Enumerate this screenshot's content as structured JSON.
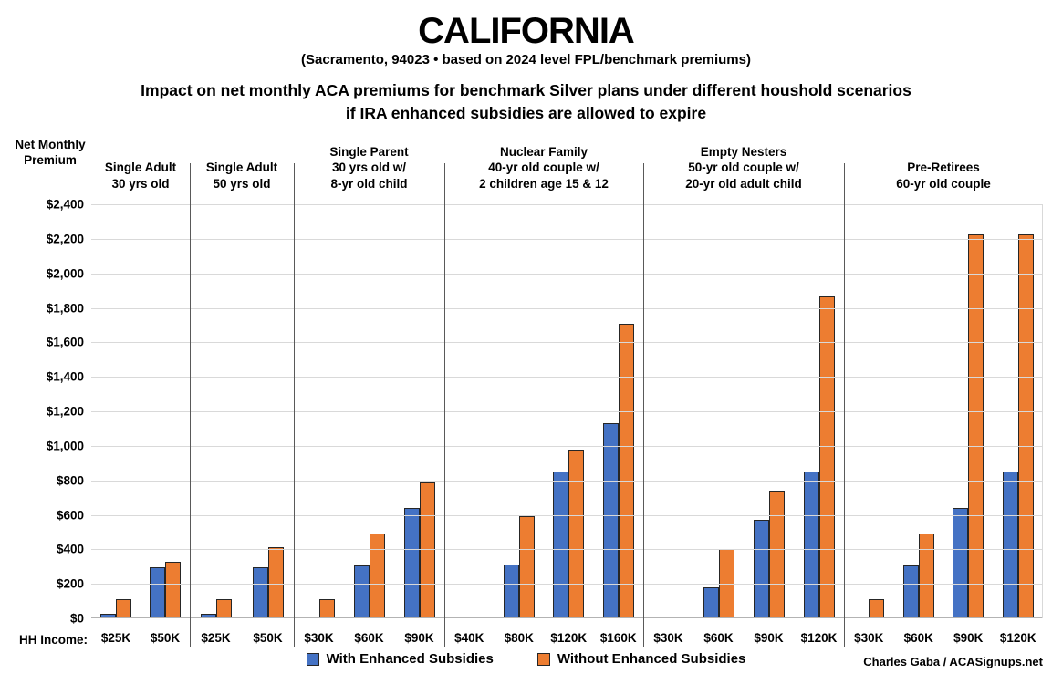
{
  "header": {
    "title": "CALIFORNIA",
    "subtitle": "(Sacramento, 94023 • based on 2024 level FPL/benchmark premiums)",
    "description_line1": "Impact on net monthly ACA premiums for benchmark Silver plans under different houshold scenarios",
    "description_line2": "if IRA enhanced subsidies are allowed to expire"
  },
  "credit": "Charles Gaba / ACASignups.net",
  "chart_data": {
    "type": "bar",
    "y_axis_title": "Net Monthly Premium",
    "ylim": [
      0,
      2400
    ],
    "ytick_step": 200,
    "yticks_top_to_bottom": [
      "$2,400",
      "$2,200",
      "$2,000",
      "$1,800",
      "$1,600",
      "$1,400",
      "$1,200",
      "$1,000",
      "$800",
      "$600",
      "$400",
      "$200",
      "$0"
    ],
    "x_axis_prefix": "HH Income:",
    "grid": true,
    "legend_position": "bottom-center",
    "colors": {
      "with": "#4472C4",
      "without": "#ED7D31",
      "grid": "#d9d9d9",
      "divider": "#595959",
      "bar_border": "#262626"
    },
    "series": [
      {
        "key": "with",
        "name": "With Enhanced Subsidies",
        "color": "#4472C4"
      },
      {
        "key": "without",
        "name": "Without Enhanced Subsidies",
        "color": "#ED7D31"
      }
    ],
    "panels": [
      {
        "header": [
          "Single Adult",
          "30 yrs old"
        ],
        "categories": [
          "$25K",
          "$50K"
        ],
        "with": [
          20,
          290
        ],
        "without": [
          105,
          325
        ]
      },
      {
        "header": [
          "Single Adult",
          "50 yrs old"
        ],
        "categories": [
          "$25K",
          "$50K"
        ],
        "with": [
          20,
          290
        ],
        "without": [
          105,
          410
        ]
      },
      {
        "header": [
          "Single Parent",
          "30 yrs old w/",
          "8-yr old child"
        ],
        "categories": [
          "$30K",
          "$60K",
          "$90K"
        ],
        "with": [
          5,
          300,
          635
        ],
        "without": [
          105,
          490,
          785
        ]
      },
      {
        "header": [
          "Nuclear Family",
          "40-yr old couple w/",
          "2 children age 15 & 12"
        ],
        "categories": [
          "$40K",
          "$80K",
          "$120K",
          "$160K"
        ],
        "with": [
          0,
          310,
          850,
          1130
        ],
        "without": [
          0,
          590,
          975,
          1705
        ]
      },
      {
        "header": [
          "Empty Nesters",
          "50-yr old couple w/",
          "20-yr old adult child"
        ],
        "categories": [
          "$30K",
          "$60K",
          "$90K",
          "$120K"
        ],
        "with": [
          0,
          175,
          565,
          850
        ],
        "without": [
          0,
          400,
          735,
          1865
        ]
      },
      {
        "header": [
          "Pre-Retirees",
          "60-yr old couple"
        ],
        "categories": [
          "$30K",
          "$60K",
          "$90K",
          "$120K"
        ],
        "with": [
          5,
          300,
          635,
          850
        ],
        "without": [
          105,
          490,
          2225,
          2225
        ]
      }
    ]
  }
}
